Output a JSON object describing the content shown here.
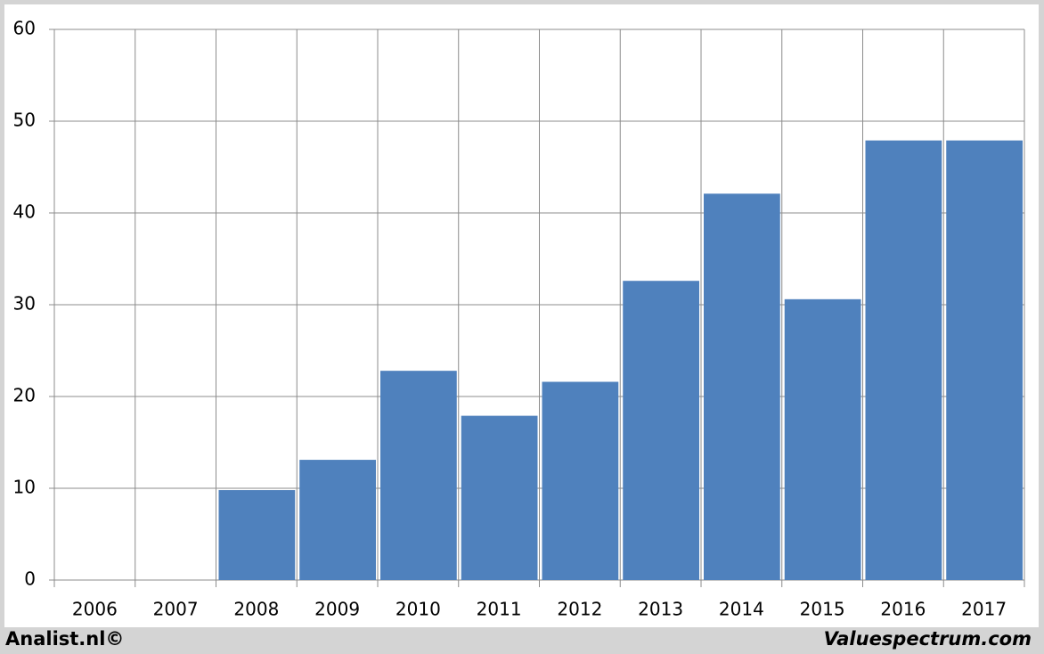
{
  "chart_data": {
    "type": "bar",
    "categories": [
      "2006",
      "2007",
      "2008",
      "2009",
      "2010",
      "2011",
      "2012",
      "2013",
      "2014",
      "2015",
      "2016",
      "2017"
    ],
    "values": [
      null,
      null,
      9.8,
      13.1,
      22.8,
      17.9,
      21.6,
      32.6,
      42.1,
      30.6,
      47.9,
      47.9
    ],
    "color": "#4f81bd",
    "ylim": [
      0,
      60
    ],
    "yticks": [
      0,
      10,
      20,
      30,
      40,
      50,
      60
    ],
    "grid": true
  },
  "footer": {
    "left": "Analist.nl©",
    "right": "Valuespectrum.com"
  }
}
